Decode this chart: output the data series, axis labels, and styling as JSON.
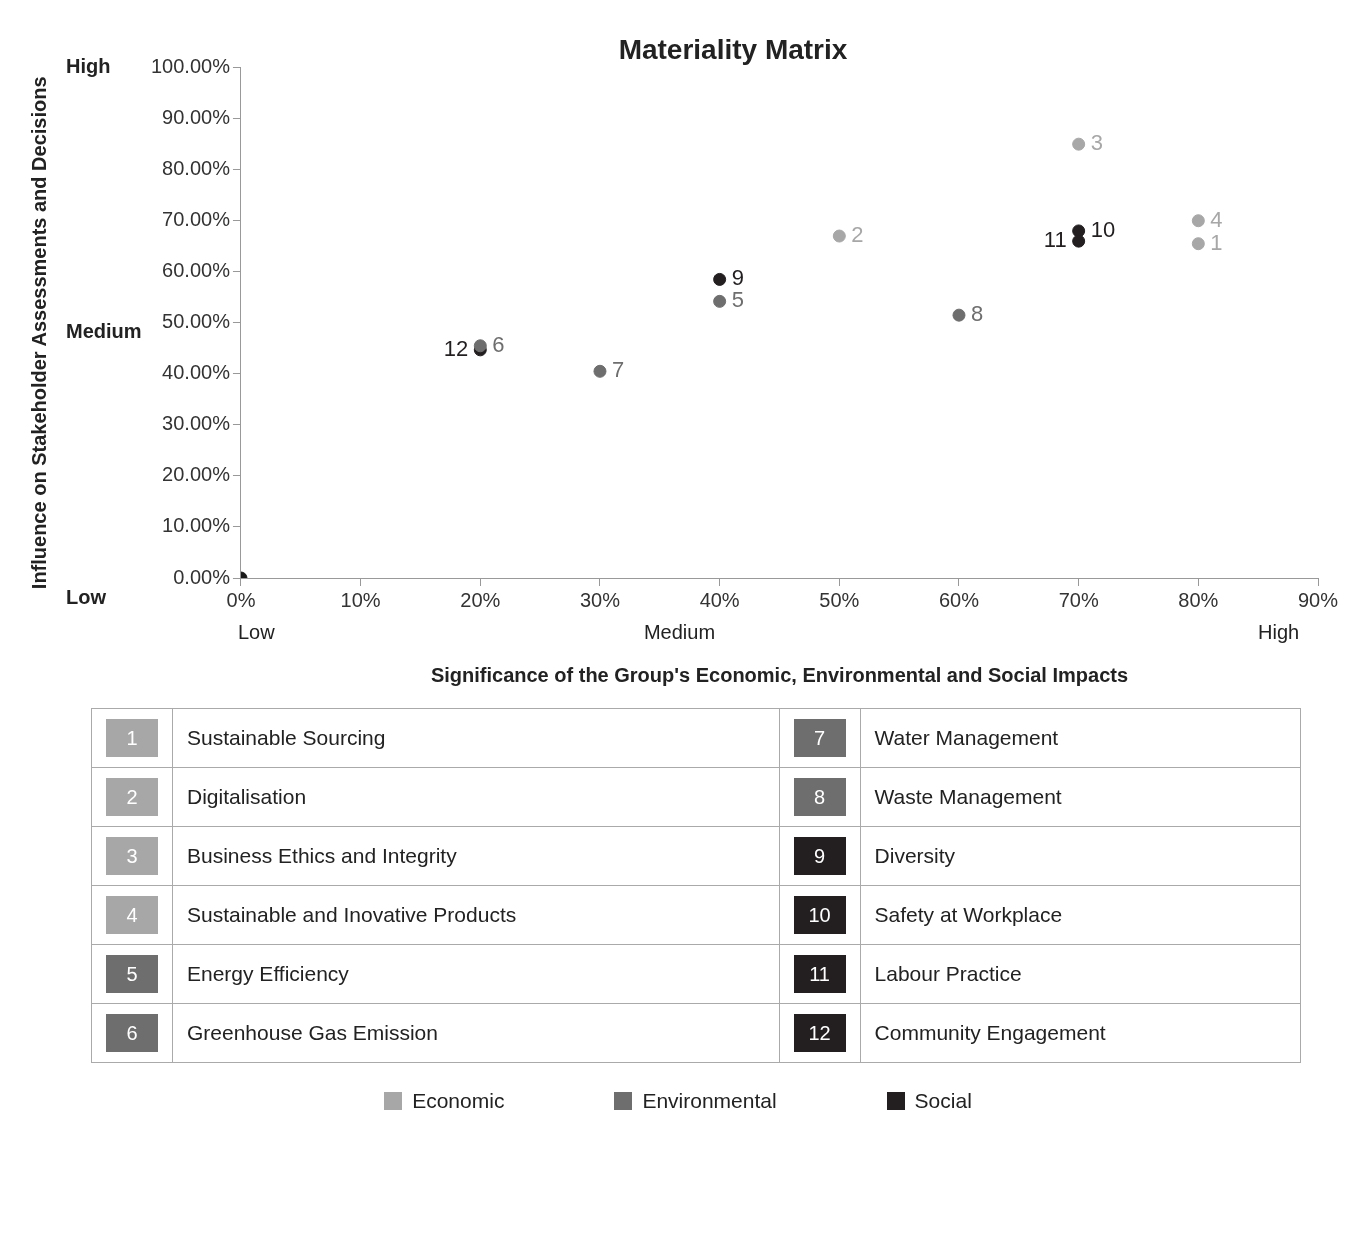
{
  "chart_data": {
    "type": "scatter",
    "title": "Materiality Matrix",
    "xlabel": "Significance of the Group's Economic, Environmental and Social Impacts",
    "xlim": [
      0,
      90
    ],
    "xticks": [
      {
        "value": 0,
        "label": "0%"
      },
      {
        "value": 10,
        "label": "10%"
      },
      {
        "value": 20,
        "label": "20%"
      },
      {
        "value": 30,
        "label": "30%"
      },
      {
        "value": 40,
        "label": "40%"
      },
      {
        "value": 50,
        "label": "50%"
      },
      {
        "value": 60,
        "label": "60%"
      },
      {
        "value": 70,
        "label": "70%"
      },
      {
        "value": 80,
        "label": "80%"
      },
      {
        "value": 90,
        "label": "90%"
      }
    ],
    "ylim": [
      0,
      100
    ],
    "yticks": [
      {
        "value": 0,
        "label": "0.00%"
      },
      {
        "value": 10,
        "label": "10.00%"
      },
      {
        "value": 20,
        "label": "20.00%"
      },
      {
        "value": 30,
        "label": "30.00%"
      },
      {
        "value": 40,
        "label": "40.00%"
      },
      {
        "value": 50,
        "label": "50.00%"
      },
      {
        "value": 60,
        "label": "60.00%"
      },
      {
        "value": 70,
        "label": "70.00%"
      },
      {
        "value": 80,
        "label": "80.00%"
      },
      {
        "value": 90,
        "label": "90.00%"
      },
      {
        "value": 100,
        "label": "100.00%"
      }
    ],
    "marker": "circle",
    "legend": "bottom",
    "series": [
      {
        "name": "Economic",
        "color": "#a7a7a7",
        "x": [
          80,
          50,
          70,
          80
        ],
        "values": [
          65.5,
          67,
          85,
          70
        ]
      },
      {
        "name": "Environmental",
        "color": "#6e6e6e",
        "x": [
          40,
          20,
          30,
          60
        ],
        "values": [
          54.2,
          45.5,
          40.5,
          51.5
        ]
      },
      {
        "name": "Social",
        "color": "#231f20",
        "x": [
          40,
          70,
          70,
          20
        ],
        "values": [
          58.5,
          68,
          66,
          44.7
        ]
      },
      {
        "color": "#1a1a1a",
        "x": [
          0
        ],
        "values": [
          0
        ]
      }
    ],
    "annotations": [
      "High",
      "Medium",
      "Low",
      "Low",
      "Medium",
      "High",
      "Influence on Stakeholder Assessments and Decisions",
      {
        "text": "1",
        "x": 80,
        "y": 65.5
      },
      {
        "text": "2",
        "x": 50,
        "y": 67
      },
      {
        "text": "3",
        "x": 70,
        "y": 85
      },
      {
        "text": "4",
        "x": 80,
        "y": 70
      },
      {
        "text": "5",
        "x": 40,
        "y": 54.2
      },
      {
        "text": "6",
        "x": 20,
        "y": 45.5
      },
      {
        "text": "7",
        "x": 30,
        "y": 40.5
      },
      {
        "text": "8",
        "x": 60,
        "y": 51.5
      },
      {
        "text": "9",
        "x": 40,
        "y": 58.5
      },
      {
        "text": "10",
        "x": 70,
        "y": 68
      },
      {
        "text": "11",
        "x": 70,
        "y": 66
      },
      {
        "text": "12",
        "x": 20,
        "y": 44.7
      },
      "Sustainable Sourcing",
      "Digitalisation",
      "Business Ethics and Integrity",
      "Sustainable and Inovative Products",
      "Energy Efficiency",
      "Greenhouse Gas Emission",
      "Water Management",
      "Waste Management",
      "Diversity",
      "Safety at Workplace",
      "Labour Practice",
      "Community Engagement"
    ]
  }
}
